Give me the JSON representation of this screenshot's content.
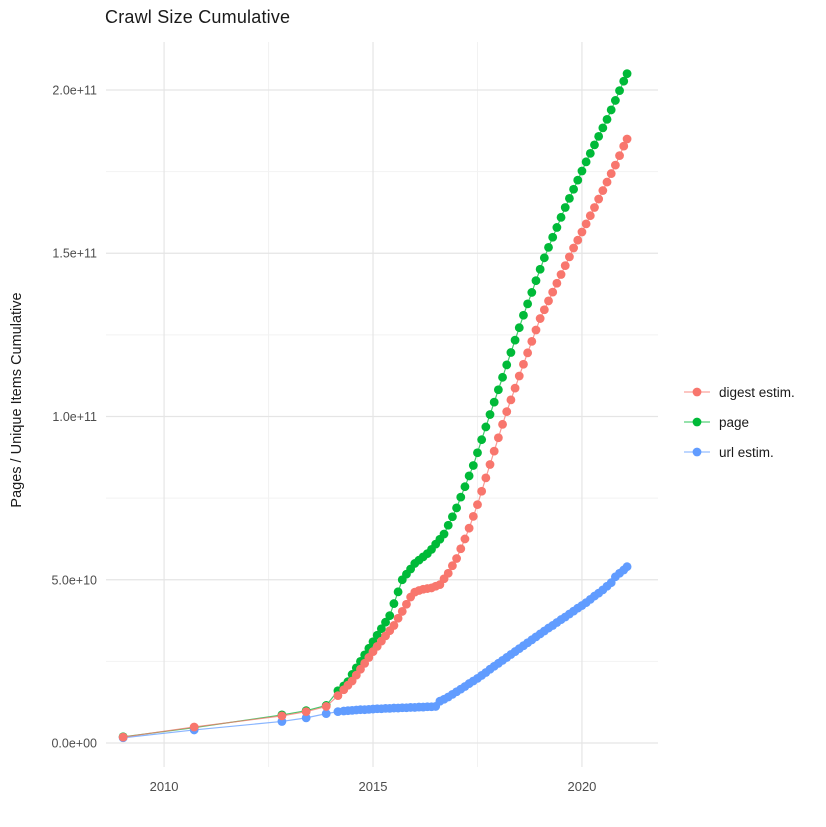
{
  "page": {
    "title": "Crawl Size Cumulative"
  },
  "axes": {
    "y_title": "Pages / Unique Items Cumulative",
    "x_ticks": [
      {
        "value": 2010,
        "label": "2010"
      },
      {
        "value": 2015,
        "label": "2015"
      },
      {
        "value": 2020,
        "label": "2020"
      }
    ],
    "y_ticks": [
      {
        "value": 0,
        "label": "0.0e+00"
      },
      {
        "value": 50,
        "label": "5.0e+10"
      },
      {
        "value": 100,
        "label": "1.0e+11"
      },
      {
        "value": 150,
        "label": "1.5e+11"
      },
      {
        "value": 200,
        "label": "2.0e+11"
      }
    ],
    "x_minor": [
      2012.5,
      2017.5
    ],
    "y_minor": [
      25,
      75,
      125,
      175
    ],
    "tick_label_color": "#4d4d4d",
    "grid_major_color": "#e5e5e5",
    "grid_minor_color": "#f2f2f2"
  },
  "legend": {
    "items": [
      {
        "label": "digest estim.",
        "color": "#F8766D"
      },
      {
        "label": "page",
        "color": "#00BA38"
      },
      {
        "label": "url estim.",
        "color": "#619CFF"
      }
    ]
  },
  "chart_data": {
    "type": "scatter",
    "title": "Crawl Size Cumulative",
    "xlabel": "",
    "ylabel": "Pages / Unique Items Cumulative",
    "x_unit": "year",
    "y_unit": "billions of pages / unique items (value x 1e9)",
    "xlim": [
      2008.61,
      2021.82
    ],
    "ylim": [
      -7.35,
      214.7
    ],
    "grid": true,
    "legend_position": "right",
    "marker_radius": 4.4,
    "draw_order": [
      1,
      2,
      0
    ],
    "series": [
      {
        "name": "digest estim.",
        "color": "#F8766D",
        "points": [
          [
            2009.02,
            1.8
          ],
          [
            2010.72,
            4.9
          ],
          [
            2012.82,
            8.3
          ],
          [
            2013.4,
            9.6
          ],
          [
            2013.88,
            11.2
          ],
          [
            2014.16,
            14.5
          ],
          [
            2014.3,
            16.3
          ],
          [
            2014.4,
            17.7
          ],
          [
            2014.5,
            19
          ],
          [
            2014.6,
            20.8
          ],
          [
            2014.7,
            22.6
          ],
          [
            2014.8,
            24.4
          ],
          [
            2014.9,
            26.2
          ],
          [
            2015.0,
            28
          ],
          [
            2015.1,
            29.6
          ],
          [
            2015.2,
            31.2
          ],
          [
            2015.3,
            32.8
          ],
          [
            2015.4,
            34.4
          ],
          [
            2015.5,
            36
          ],
          [
            2015.6,
            38.2
          ],
          [
            2015.7,
            40.3
          ],
          [
            2015.8,
            42.5
          ],
          [
            2015.9,
            44.7
          ],
          [
            2016.0,
            46.2
          ],
          [
            2016.1,
            46.7
          ],
          [
            2016.2,
            47.1
          ],
          [
            2016.3,
            47.3
          ],
          [
            2016.4,
            47.5
          ],
          [
            2016.5,
            48
          ],
          [
            2016.6,
            48.5
          ],
          [
            2016.7,
            50.3
          ],
          [
            2016.8,
            52
          ],
          [
            2016.9,
            54.3
          ],
          [
            2017.0,
            56.5
          ],
          [
            2017.1,
            59.5
          ],
          [
            2017.2,
            62.5
          ],
          [
            2017.3,
            65.8
          ],
          [
            2017.4,
            69.4
          ],
          [
            2017.5,
            73
          ],
          [
            2017.6,
            77.1
          ],
          [
            2017.7,
            81.2
          ],
          [
            2017.8,
            85.3
          ],
          [
            2017.9,
            89.4
          ],
          [
            2018.0,
            93.5
          ],
          [
            2018.1,
            97.6
          ],
          [
            2018.2,
            101.5
          ],
          [
            2018.3,
            105.1
          ],
          [
            2018.4,
            108.7
          ],
          [
            2018.5,
            112.4
          ],
          [
            2018.6,
            116
          ],
          [
            2018.7,
            119.5
          ],
          [
            2018.8,
            123
          ],
          [
            2018.9,
            126.5
          ],
          [
            2019.0,
            130
          ],
          [
            2019.1,
            132.7
          ],
          [
            2019.2,
            135.4
          ],
          [
            2019.3,
            138.1
          ],
          [
            2019.4,
            140.8
          ],
          [
            2019.5,
            143.5
          ],
          [
            2019.6,
            146.2
          ],
          [
            2019.7,
            148.9
          ],
          [
            2019.8,
            151.6
          ],
          [
            2019.9,
            154
          ],
          [
            2020.0,
            156.5
          ],
          [
            2020.1,
            159
          ],
          [
            2020.2,
            161.5
          ],
          [
            2020.3,
            164
          ],
          [
            2020.4,
            166.6
          ],
          [
            2020.5,
            169.2
          ],
          [
            2020.6,
            171.8
          ],
          [
            2020.7,
            174.4
          ],
          [
            2020.8,
            177
          ],
          [
            2020.9,
            179.9
          ],
          [
            2021.0,
            182.8
          ],
          [
            2021.08,
            185
          ]
        ]
      },
      {
        "name": "page",
        "color": "#00BA38",
        "points": [
          [
            2009.02,
            1.9
          ],
          [
            2010.72,
            4.7
          ],
          [
            2012.82,
            8.6
          ],
          [
            2013.4,
            9.9
          ],
          [
            2013.88,
            11.5
          ],
          [
            2014.16,
            16
          ],
          [
            2014.3,
            17.5
          ],
          [
            2014.4,
            18.8
          ],
          [
            2014.5,
            21
          ],
          [
            2014.6,
            23
          ],
          [
            2014.7,
            25
          ],
          [
            2014.8,
            27
          ],
          [
            2014.9,
            29
          ],
          [
            2015.0,
            31
          ],
          [
            2015.1,
            33
          ],
          [
            2015.2,
            35
          ],
          [
            2015.3,
            37
          ],
          [
            2015.4,
            39
          ],
          [
            2015.5,
            42.7
          ],
          [
            2015.6,
            46.3
          ],
          [
            2015.7,
            50
          ],
          [
            2015.8,
            51.7
          ],
          [
            2015.9,
            53.3
          ],
          [
            2016.0,
            55
          ],
          [
            2016.1,
            56
          ],
          [
            2016.2,
            57
          ],
          [
            2016.3,
            58
          ],
          [
            2016.4,
            59.3
          ],
          [
            2016.5,
            60.9
          ],
          [
            2016.6,
            62.4
          ],
          [
            2016.7,
            64
          ],
          [
            2016.8,
            66.7
          ],
          [
            2016.9,
            69.3
          ],
          [
            2017.0,
            72
          ],
          [
            2017.1,
            75.3
          ],
          [
            2017.2,
            78.5
          ],
          [
            2017.3,
            81.8
          ],
          [
            2017.4,
            85
          ],
          [
            2017.5,
            88.9
          ],
          [
            2017.6,
            92.9
          ],
          [
            2017.7,
            96.8
          ],
          [
            2017.8,
            100.6
          ],
          [
            2017.9,
            104.4
          ],
          [
            2018.0,
            108.2
          ],
          [
            2018.1,
            112
          ],
          [
            2018.2,
            115.8
          ],
          [
            2018.3,
            119.6
          ],
          [
            2018.4,
            123.4
          ],
          [
            2018.5,
            127.2
          ],
          [
            2018.6,
            131
          ],
          [
            2018.7,
            134.5
          ],
          [
            2018.8,
            138
          ],
          [
            2018.9,
            141.6
          ],
          [
            2019.0,
            145.1
          ],
          [
            2019.1,
            148.6
          ],
          [
            2019.2,
            151.8
          ],
          [
            2019.3,
            154.9
          ],
          [
            2019.4,
            157.9
          ],
          [
            2019.5,
            161
          ],
          [
            2019.6,
            164
          ],
          [
            2019.7,
            166.8
          ],
          [
            2019.8,
            169.6
          ],
          [
            2019.9,
            172.4
          ],
          [
            2020.0,
            175.2
          ],
          [
            2020.1,
            178
          ],
          [
            2020.2,
            180.6
          ],
          [
            2020.3,
            183.2
          ],
          [
            2020.4,
            185.8
          ],
          [
            2020.5,
            188.4
          ],
          [
            2020.6,
            191
          ],
          [
            2020.7,
            193.9
          ],
          [
            2020.8,
            196.8
          ],
          [
            2020.9,
            199.8
          ],
          [
            2021.0,
            202.7
          ],
          [
            2021.08,
            205
          ]
        ]
      },
      {
        "name": "url estim.",
        "color": "#619CFF",
        "points": [
          [
            2009.02,
            1.6
          ],
          [
            2010.72,
            4.0
          ],
          [
            2012.82,
            6.6
          ],
          [
            2013.4,
            7.7
          ],
          [
            2013.88,
            9.0
          ],
          [
            2014.16,
            9.6
          ],
          [
            2014.3,
            9.8
          ],
          [
            2014.4,
            9.9
          ],
          [
            2014.5,
            10
          ],
          [
            2014.6,
            10.1
          ],
          [
            2014.7,
            10.2
          ],
          [
            2014.8,
            10.2
          ],
          [
            2014.9,
            10.3
          ],
          [
            2015.0,
            10.4
          ],
          [
            2015.1,
            10.5
          ],
          [
            2015.2,
            10.5
          ],
          [
            2015.3,
            10.6
          ],
          [
            2015.4,
            10.6
          ],
          [
            2015.5,
            10.7
          ],
          [
            2015.6,
            10.7
          ],
          [
            2015.7,
            10.8
          ],
          [
            2015.8,
            10.8
          ],
          [
            2015.9,
            10.9
          ],
          [
            2016.0,
            10.9
          ],
          [
            2016.1,
            11
          ],
          [
            2016.2,
            11
          ],
          [
            2016.3,
            11.1
          ],
          [
            2016.4,
            11.1
          ],
          [
            2016.5,
            11.2
          ],
          [
            2016.6,
            12.8
          ],
          [
            2016.7,
            13.4
          ],
          [
            2016.8,
            14.1
          ],
          [
            2016.9,
            14.9
          ],
          [
            2017.0,
            15.7
          ],
          [
            2017.1,
            16.5
          ],
          [
            2017.2,
            17.3
          ],
          [
            2017.3,
            18.2
          ],
          [
            2017.4,
            19
          ],
          [
            2017.5,
            19.8
          ],
          [
            2017.6,
            20.7
          ],
          [
            2017.7,
            21.6
          ],
          [
            2017.8,
            22.6
          ],
          [
            2017.9,
            23.5
          ],
          [
            2018.0,
            24.4
          ],
          [
            2018.1,
            25.3
          ],
          [
            2018.2,
            26.2
          ],
          [
            2018.3,
            27.1
          ],
          [
            2018.4,
            28
          ],
          [
            2018.5,
            28.9
          ],
          [
            2018.6,
            29.8
          ],
          [
            2018.7,
            30.7
          ],
          [
            2018.8,
            31.6
          ],
          [
            2018.9,
            32.5
          ],
          [
            2019.0,
            33.4
          ],
          [
            2019.1,
            34.3
          ],
          [
            2019.2,
            35.2
          ],
          [
            2019.3,
            36
          ],
          [
            2019.4,
            36.9
          ],
          [
            2019.5,
            37.8
          ],
          [
            2019.6,
            38.6
          ],
          [
            2019.7,
            39.5
          ],
          [
            2019.8,
            40.4
          ],
          [
            2019.9,
            41.3
          ],
          [
            2020.0,
            42.1
          ],
          [
            2020.1,
            43
          ],
          [
            2020.2,
            44
          ],
          [
            2020.3,
            45
          ],
          [
            2020.4,
            45.9
          ],
          [
            2020.5,
            46.9
          ],
          [
            2020.6,
            48
          ],
          [
            2020.7,
            49.1
          ],
          [
            2020.8,
            50.9
          ],
          [
            2020.9,
            52
          ],
          [
            2021.0,
            53
          ],
          [
            2021.08,
            54
          ]
        ]
      }
    ]
  }
}
